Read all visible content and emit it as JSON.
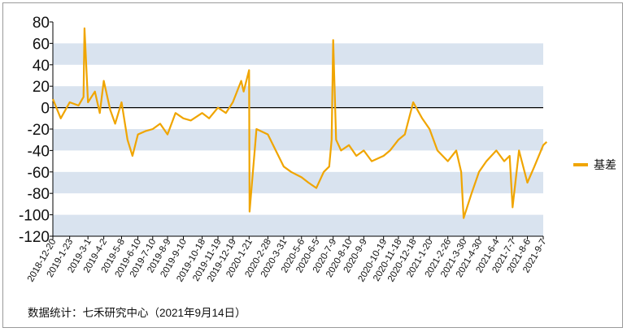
{
  "chart_data": {
    "type": "line",
    "title": "",
    "xlabel": "",
    "ylabel": "",
    "ylim": [
      -120,
      80
    ],
    "yticks": [
      80,
      60,
      40,
      20,
      0,
      -20,
      -40,
      -60,
      -80,
      -100,
      -120
    ],
    "grid": "horizontal alternating bands",
    "legend_position": "right",
    "x_tick_labels": [
      "2018-12-20",
      "2019-1-23",
      "2019-3-1",
      "2019-4-2",
      "2019-5-8",
      "2019-6-10",
      "2019-7-10",
      "2019-8-9",
      "2019-9-10",
      "2019-10-18",
      "2019-11-19",
      "2019-12-19",
      "2020-1-21",
      "2020-2-28",
      "2020-3-31",
      "2020-5-6",
      "2020-6-5",
      "2020-7-9",
      "2020-8-10",
      "2020-9-9",
      "2020-10-19",
      "2020-11-18",
      "2020-12-18",
      "2021-1-20",
      "2021-2-26",
      "2021-3-30",
      "2021-4-30",
      "2021-6-4",
      "2021-7-7",
      "2021-8-6",
      "2021-9-7"
    ],
    "series": [
      {
        "name": "基差",
        "color": "#f0a500",
        "x": [
          "2018-12-20",
          "2019-1-5",
          "2019-1-23",
          "2019-2-10",
          "2019-2-20",
          "2019-2-22",
          "2019-3-1",
          "2019-3-15",
          "2019-3-25",
          "2019-4-2",
          "2019-4-15",
          "2019-4-25",
          "2019-5-8",
          "2019-5-20",
          "2019-5-30",
          "2019-6-10",
          "2019-6-25",
          "2019-7-10",
          "2019-7-25",
          "2019-8-9",
          "2019-8-25",
          "2019-9-10",
          "2019-9-25",
          "2019-10-18",
          "2019-11-1",
          "2019-11-19",
          "2019-12-5",
          "2019-12-19",
          "2020-1-5",
          "2020-1-10",
          "2020-1-21",
          "2020-1-22",
          "2020-2-5",
          "2020-2-28",
          "2020-3-15",
          "2020-3-31",
          "2020-4-15",
          "2020-5-6",
          "2020-5-20",
          "2020-6-5",
          "2020-6-20",
          "2020-7-1",
          "2020-7-6",
          "2020-7-9",
          "2020-7-15",
          "2020-7-25",
          "2020-8-10",
          "2020-8-25",
          "2020-9-9",
          "2020-9-25",
          "2020-10-19",
          "2020-11-1",
          "2020-11-18",
          "2020-12-1",
          "2020-12-18",
          "2021-1-5",
          "2021-1-20",
          "2021-2-5",
          "2021-2-26",
          "2021-3-15",
          "2021-3-25",
          "2021-3-30",
          "2021-4-15",
          "2021-4-30",
          "2021-5-15",
          "2021-6-4",
          "2021-6-20",
          "2021-7-1",
          "2021-7-7",
          "2021-7-20",
          "2021-8-6",
          "2021-8-20",
          "2021-9-7",
          "2021-9-14"
        ],
        "values": [
          8,
          -10,
          5,
          2,
          10,
          74,
          5,
          15,
          -5,
          25,
          -2,
          -15,
          5,
          -30,
          -45,
          -25,
          -22,
          -20,
          -15,
          -25,
          -5,
          -10,
          -12,
          -5,
          -10,
          0,
          -5,
          5,
          25,
          15,
          35,
          -97,
          -20,
          -25,
          -40,
          -55,
          -60,
          -65,
          -70,
          -75,
          -60,
          -55,
          -30,
          63,
          -30,
          -40,
          -35,
          -45,
          -40,
          -50,
          -45,
          -40,
          -30,
          -25,
          5,
          -10,
          -20,
          -40,
          -50,
          -40,
          -60,
          -103,
          -80,
          -60,
          -50,
          -40,
          -50,
          -45,
          -93,
          -40,
          -70,
          -55,
          -35,
          -32
        ]
      }
    ],
    "legend": [
      "基差"
    ]
  },
  "source_note": "数据统计：七禾研究中心（2021年9月14日）"
}
